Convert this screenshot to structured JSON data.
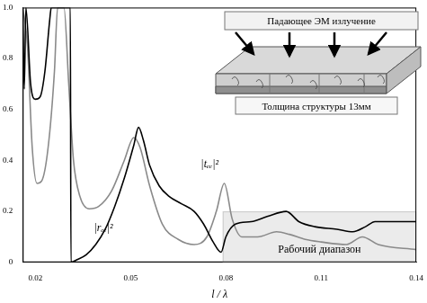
{
  "chart_data": {
    "type": "line",
    "x_label": "l / λ",
    "xlim": [
      0.016,
      0.14
    ],
    "xticks": [
      0.02,
      0.05,
      0.08,
      0.11,
      0.14
    ],
    "ylim": [
      0,
      1
    ],
    "yticks": [
      0,
      0.2,
      0.4,
      0.6,
      0.8,
      {
        "value": 1,
        "label": "1.0"
      }
    ],
    "grid": false,
    "series": [
      {
        "name": "|rₑₑ|²",
        "color": "#000000",
        "x": [
          0.016,
          0.0165,
          0.017,
          0.0185,
          0.02,
          0.0215,
          0.023,
          0.0245,
          0.025,
          0.031,
          0.0312,
          0.033,
          0.036,
          0.039,
          0.042,
          0.045,
          0.048,
          0.051,
          0.0525,
          0.054,
          0.056,
          0.059,
          0.062,
          0.066,
          0.07,
          0.073,
          0.076,
          0.0785,
          0.08,
          0.083,
          0.088,
          0.093,
          0.099,
          0.103,
          0.108,
          0.115,
          0.12,
          0.124,
          0.127,
          0.132,
          0.14
        ],
        "values": [
          1.0,
          0.68,
          1.0,
          0.7,
          0.64,
          0.65,
          0.75,
          0.95,
          1.0,
          1.0,
          0.0,
          0.01,
          0.03,
          0.07,
          0.13,
          0.22,
          0.33,
          0.46,
          0.53,
          0.48,
          0.38,
          0.3,
          0.26,
          0.23,
          0.2,
          0.15,
          0.08,
          0.04,
          0.1,
          0.15,
          0.16,
          0.18,
          0.2,
          0.16,
          0.14,
          0.13,
          0.12,
          0.14,
          0.16,
          0.16,
          0.16
        ]
      },
      {
        "name": "|tₑₑ|²",
        "color": "#8a8a8a",
        "x": [
          0.016,
          0.0175,
          0.019,
          0.0205,
          0.022,
          0.024,
          0.026,
          0.027,
          0.029,
          0.0305,
          0.032,
          0.034,
          0.037,
          0.04,
          0.044,
          0.048,
          0.051,
          0.053,
          0.056,
          0.06,
          0.065,
          0.07,
          0.074,
          0.077,
          0.0795,
          0.082,
          0.085,
          0.09,
          0.096,
          0.1,
          0.105,
          0.11,
          0.118,
          0.123,
          0.128,
          0.14
        ],
        "values": [
          1.0,
          0.85,
          0.45,
          0.31,
          0.32,
          0.45,
          0.75,
          1.0,
          1.0,
          0.7,
          0.4,
          0.26,
          0.21,
          0.22,
          0.28,
          0.4,
          0.49,
          0.45,
          0.3,
          0.15,
          0.09,
          0.07,
          0.1,
          0.2,
          0.31,
          0.17,
          0.1,
          0.1,
          0.12,
          0.11,
          0.09,
          0.08,
          0.07,
          0.1,
          0.07,
          0.05
        ]
      }
    ],
    "working_range": {
      "label": "Рабочий диапазон",
      "x": [
        0.079,
        0.14
      ],
      "y": [
        0,
        0.2
      ]
    },
    "inset": {
      "arrow_label": "Падающее ЭМ излучение",
      "thickness_label": "Толщина структуры 13мм"
    }
  }
}
